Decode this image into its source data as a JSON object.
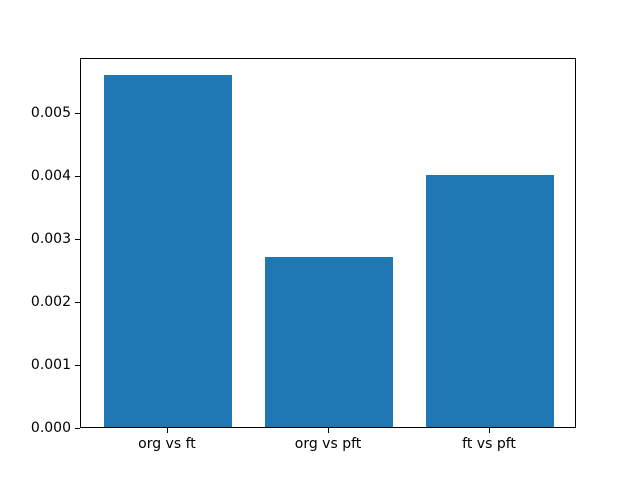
{
  "chart_data": {
    "type": "bar",
    "title": "",
    "xlabel": "",
    "ylabel": "",
    "categories": [
      "org vs ft",
      "org vs pft",
      "ft vs pft"
    ],
    "values": [
      0.0056,
      0.0027,
      0.004
    ],
    "bar_positions": [
      0,
      1,
      2
    ],
    "bar_width": 0.8,
    "xlim": [
      -0.54,
      2.54
    ],
    "ylim": [
      0,
      0.00588
    ],
    "ytick_values": [
      0,
      0.001,
      0.002,
      0.003,
      0.004,
      0.005
    ],
    "ytick_labels": [
      "0.000",
      "0.001",
      "0.002",
      "0.003",
      "0.004",
      "0.005"
    ],
    "bar_color": "#1f77b4",
    "axis_color": "#000000",
    "background_color": "#ffffff",
    "grid": false,
    "legend": false
  }
}
